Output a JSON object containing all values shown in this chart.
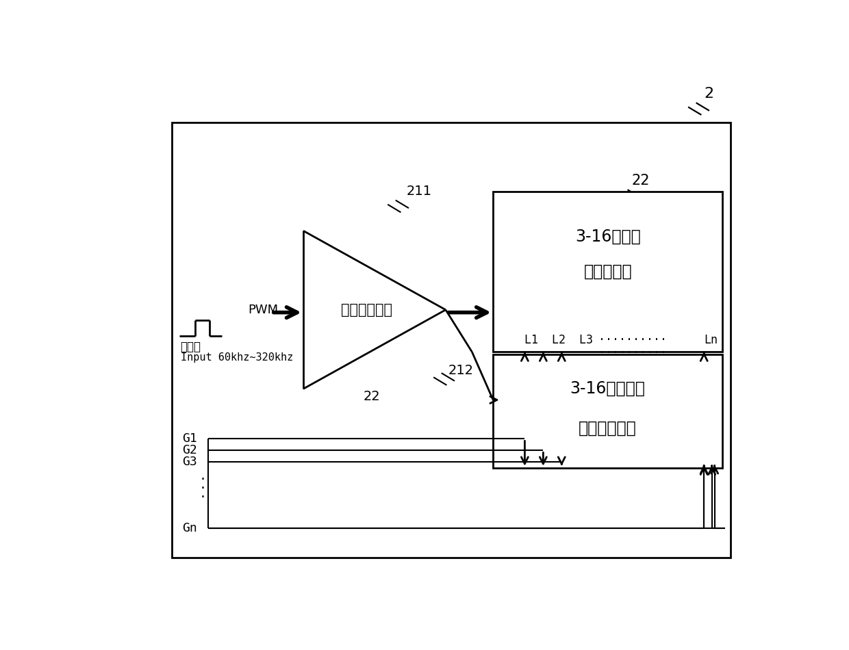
{
  "bg_color": "#ffffff",
  "lc": "#000000",
  "fig_width": 12.4,
  "fig_height": 9.5,
  "label_2": "2",
  "label_22_top": "22",
  "label_211": "211",
  "label_212": "212",
  "label_22_bottom": "22",
  "pwm_label": "PWM",
  "narrow_pulse_label": "窄脉冲",
  "input_label": "Input 60khz~320khz",
  "high_speed_label": "高速驱动电路",
  "box1_label_line1": "3-16个阵列",
  "box1_label_line2": "激光二极管",
  "box2_label_line1": "3-16路激光二",
  "box2_label_line2": "极管控制电路",
  "g_labels": [
    "G1",
    "G2",
    "G3"
  ],
  "gn_label": "Gn",
  "dots_h": "··········"
}
